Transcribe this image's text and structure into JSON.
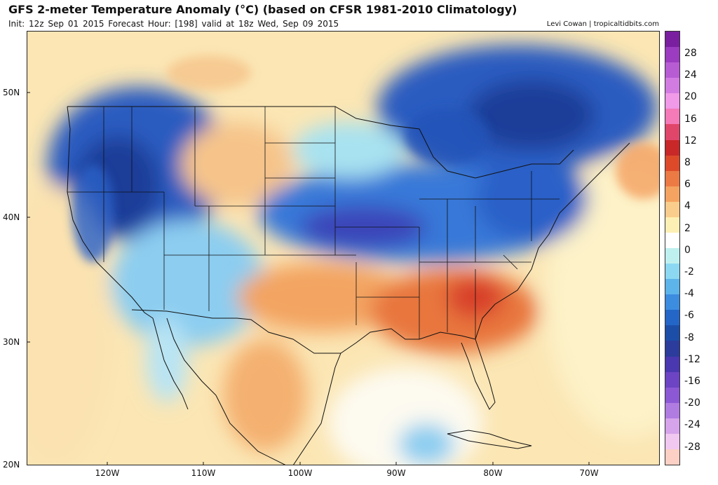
{
  "header": {
    "title": "GFS 2-meter Temperature Anomaly (°C) (based on CFSR 1981-2010 Climatology)",
    "subtitle": "Init: 12z Sep 01 2015   Forecast Hour: [198]   valid at 18z Wed, Sep 09 2015",
    "credit": "Levi Cowan | tropicaltidbits.com"
  },
  "axes": {
    "lat_labels": [
      "50N",
      "40N",
      "30N",
      "20N"
    ],
    "lon_labels": [
      "120W",
      "110W",
      "100W",
      "90W",
      "80W",
      "70W"
    ]
  },
  "colorbar": {
    "labels": [
      "28",
      "24",
      "20",
      "16",
      "12",
      "8",
      "6",
      "4",
      "2",
      "0",
      "-2",
      "-4",
      "-6",
      "-8",
      "-12",
      "-16",
      "-20",
      "-24",
      "-28"
    ],
    "colors": [
      "#7a1fa0",
      "#9c3cc0",
      "#b85cd4",
      "#d27ce2",
      "#f09ae8",
      "#f47ab8",
      "#e0466a",
      "#c82828",
      "#dc4a2a",
      "#ec7a44",
      "#f4a460",
      "#f9cd8c",
      "#fdf0b4",
      "#ffffff",
      "#bff0f0",
      "#8cd8f2",
      "#5cb4ea",
      "#3c8ce0",
      "#2466c8",
      "#1c4ea8",
      "#2c3c9c",
      "#4a38b0",
      "#6c44c4",
      "#8c58d4",
      "#b07ce2",
      "#d6a4ea",
      "#f0c8f0",
      "#fcd0c4"
    ]
  }
}
